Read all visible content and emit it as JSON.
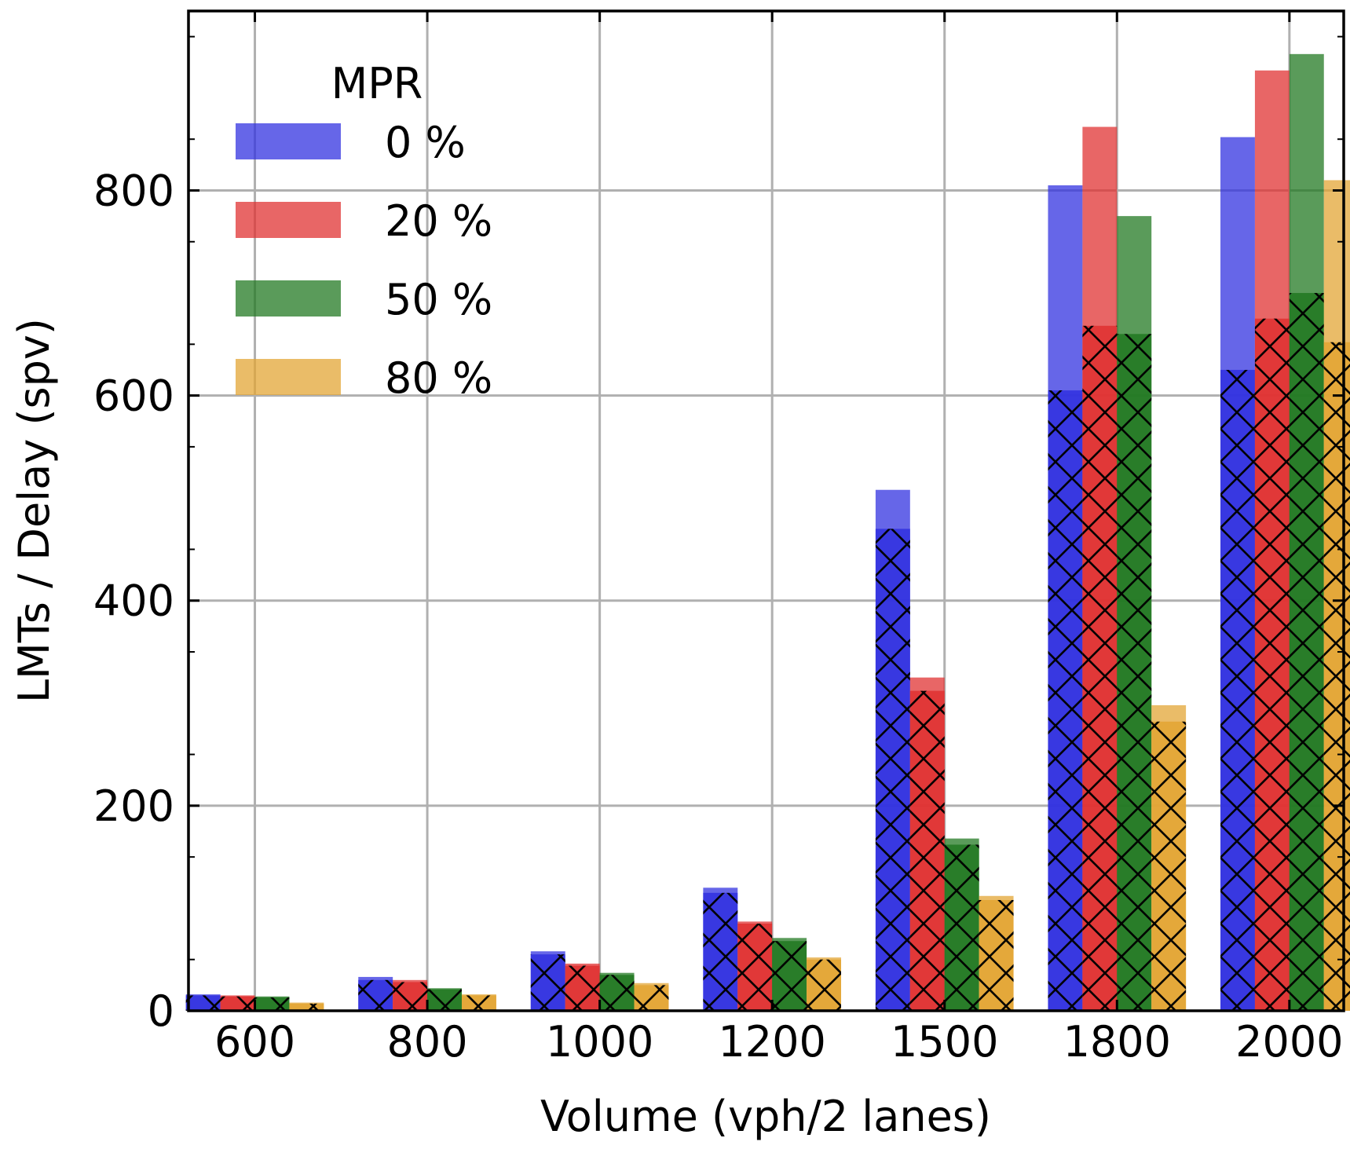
{
  "chart_data": {
    "type": "bar",
    "xlabel": "Volume (vph/2 lanes)",
    "ylabel": "LMTs / Delay (spv)",
    "categories": [
      "600",
      "800",
      "1000",
      "1200",
      "1500",
      "1800",
      "2000"
    ],
    "ylim": [
      0,
      975
    ],
    "yticks": [
      0,
      200,
      400,
      600,
      800
    ],
    "grid": true,
    "legend": {
      "title": "MPR",
      "position": "top-left"
    },
    "series": [
      {
        "name": "0 %",
        "color": "#3333e0",
        "values": [
          16,
          33,
          58,
          120,
          508,
          805,
          852
        ],
        "hatched_values": [
          15,
          30,
          55,
          115,
          470,
          605,
          625
        ]
      },
      {
        "name": "20 %",
        "color": "#e03333",
        "values": [
          15,
          30,
          46,
          87,
          325,
          862,
          917
        ],
        "hatched_values": [
          14,
          28,
          44,
          85,
          312,
          668,
          675
        ]
      },
      {
        "name": "50 %",
        "color": "#237a23",
        "values": [
          14,
          22,
          37,
          71,
          168,
          775,
          933
        ],
        "hatched_values": [
          13,
          21,
          35,
          68,
          162,
          660,
          700
        ]
      },
      {
        "name": "80 %",
        "color": "#e3a535",
        "values": [
          8,
          16,
          27,
          52,
          112,
          298,
          810
        ],
        "hatched_values": [
          7,
          15,
          25,
          50,
          108,
          282,
          652
        ]
      }
    ]
  }
}
